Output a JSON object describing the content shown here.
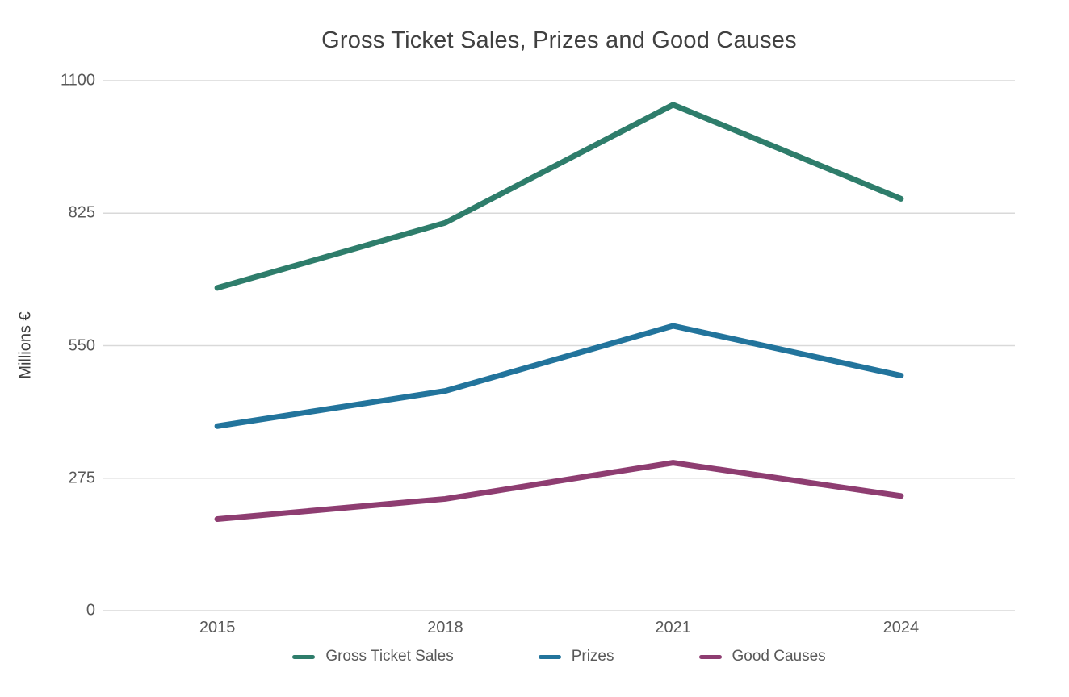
{
  "chart_data": {
    "type": "line",
    "title": "Gross Ticket Sales, Prizes and Good Causes",
    "ylabel": "Millions €",
    "xlabel": "",
    "categories": [
      "2015",
      "2018",
      "2021",
      "2024"
    ],
    "series": [
      {
        "name": "Gross Ticket Sales",
        "color": "#2E7D6B",
        "values": [
          670,
          805,
          1050,
          855
        ]
      },
      {
        "name": "Prizes",
        "color": "#22749C",
        "values": [
          383,
          456,
          591,
          488
        ]
      },
      {
        "name": "Good Causes",
        "color": "#8E3D71",
        "values": [
          190,
          232,
          307,
          238
        ]
      }
    ],
    "y_ticks": [
      0,
      275,
      550,
      825,
      1100
    ],
    "ylim": [
      0,
      1100
    ],
    "grid": "horizontal",
    "legend_position": "bottom",
    "colors": {
      "gridline": "#D9D9D9",
      "tick_text": "#595959",
      "title_text": "#404040",
      "background": "#FFFFFF"
    },
    "line_width": 7
  }
}
